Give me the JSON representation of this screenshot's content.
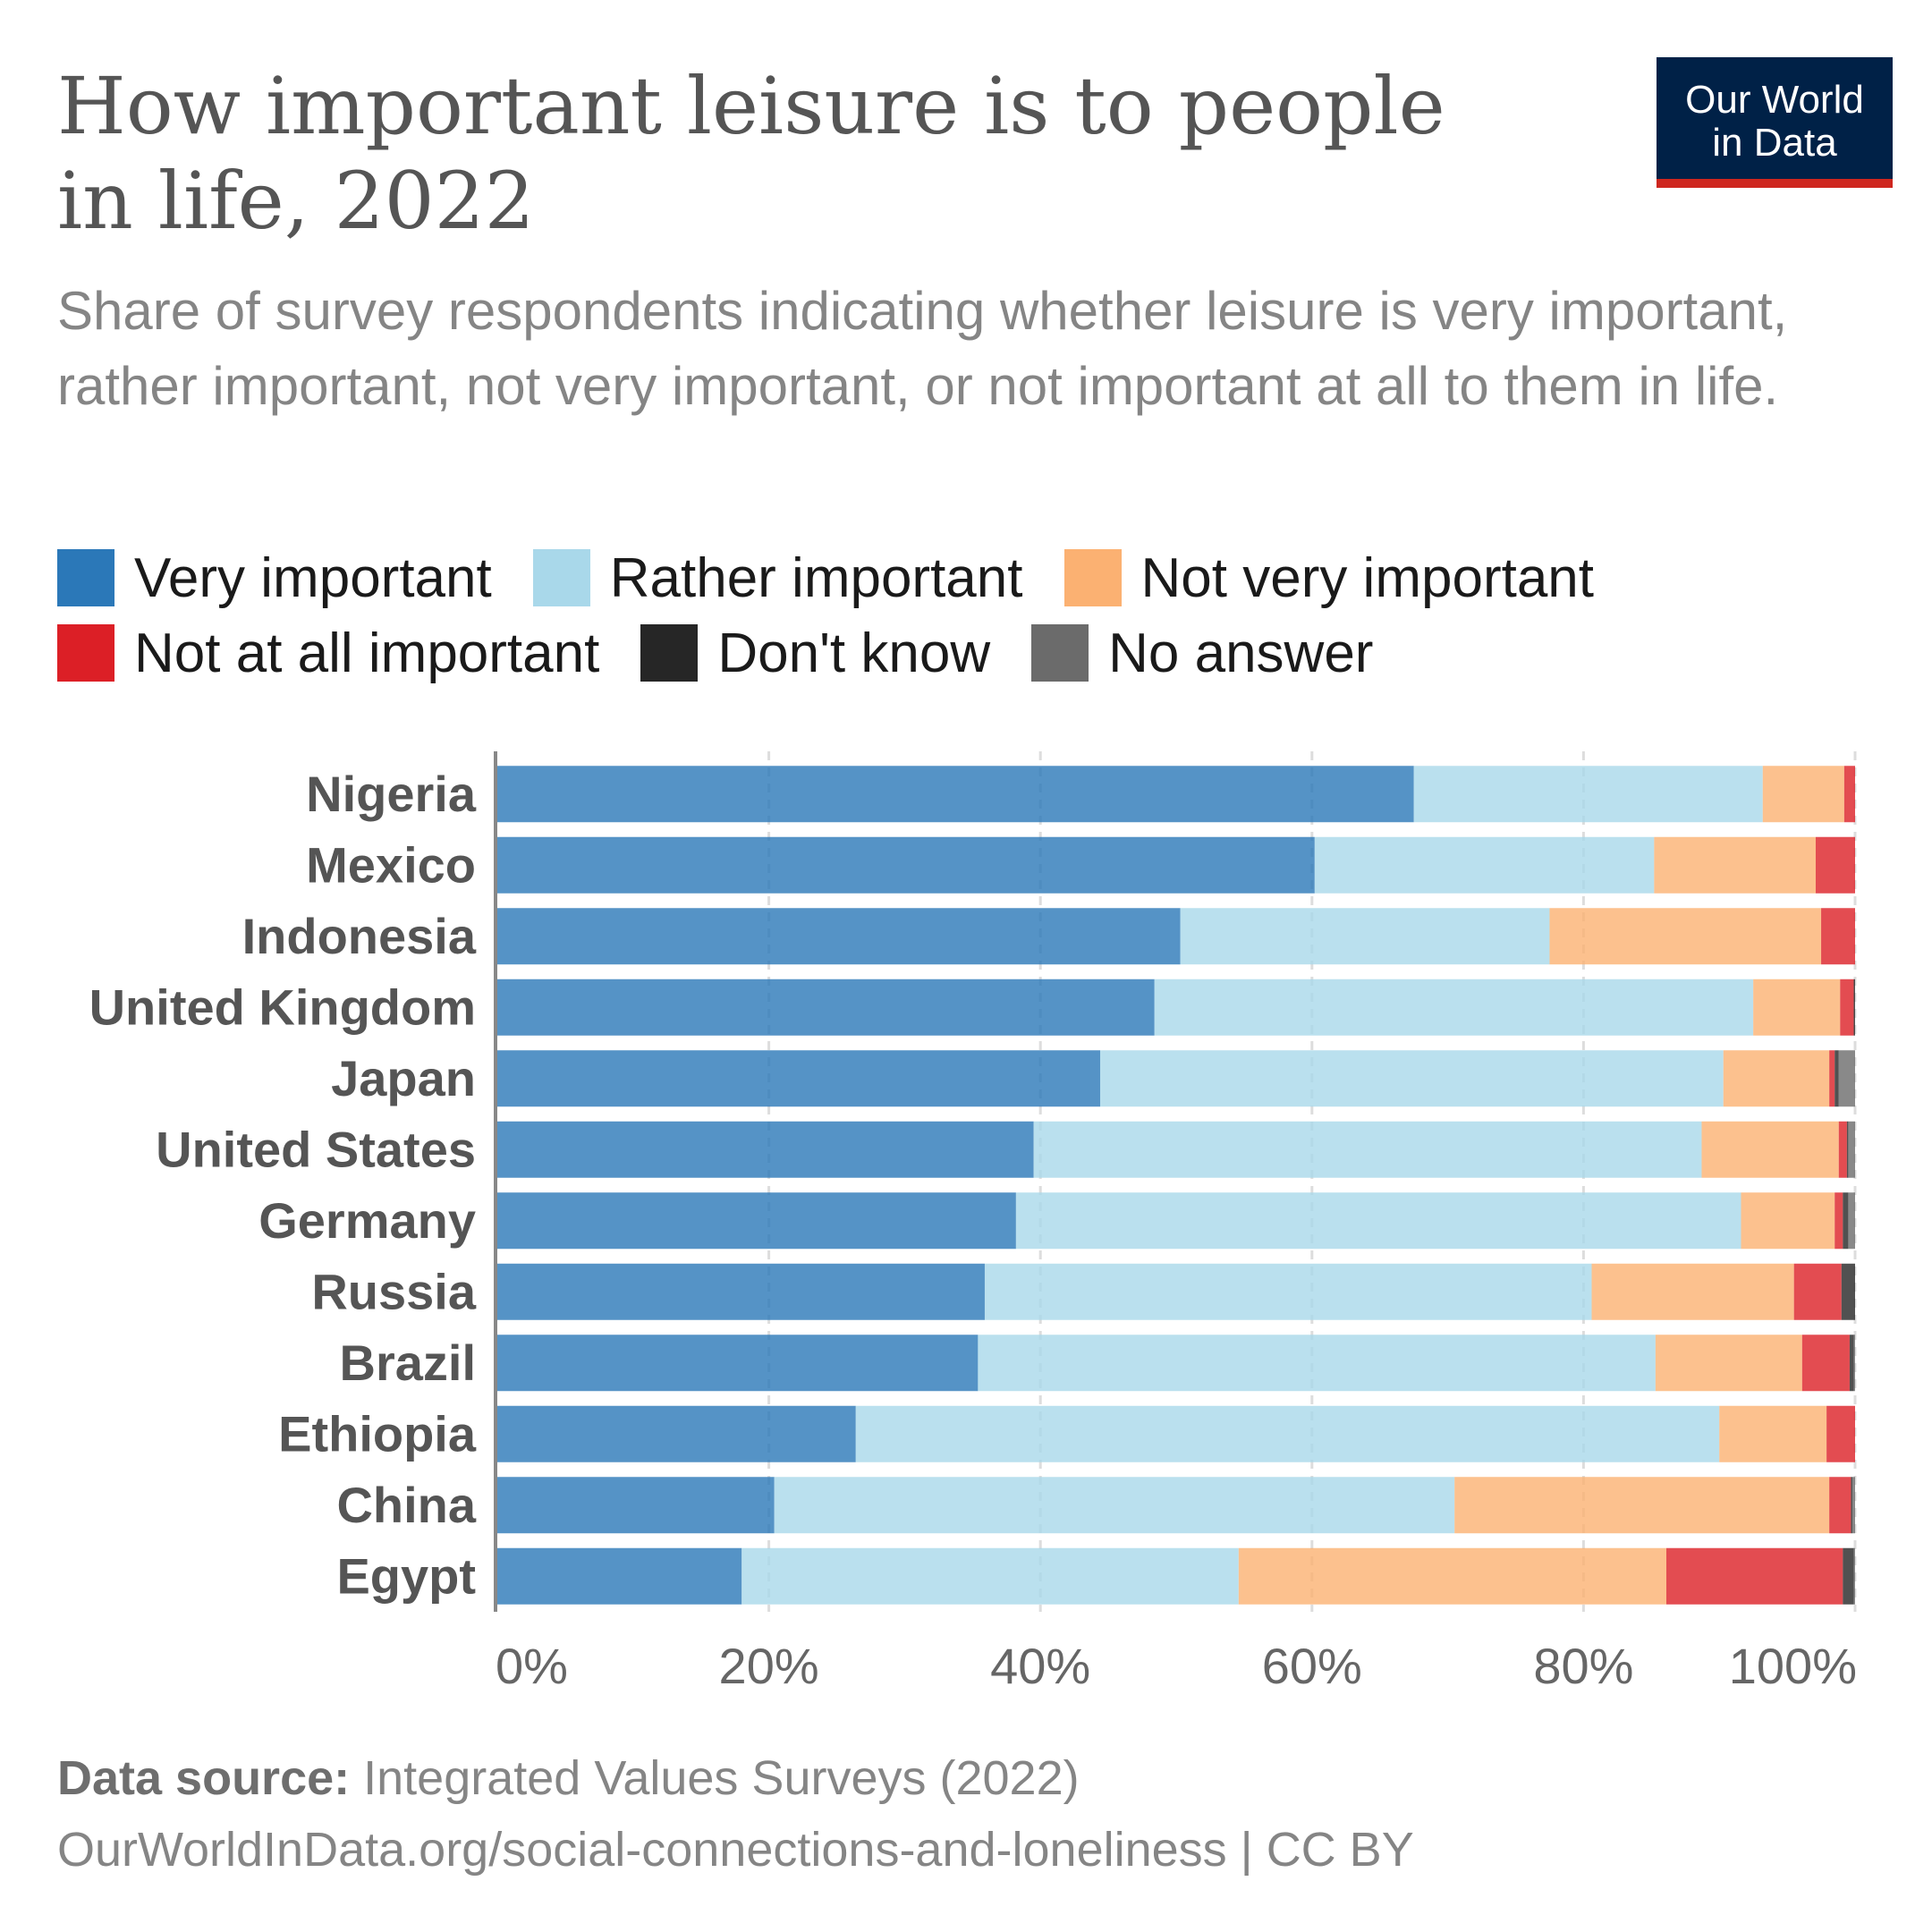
{
  "header": {
    "title": "How important leisure is to people in life, 2022",
    "subtitle": "Share of survey respondents indicating whether leisure is very important, rather important, not very important, or not important at all to them in life.",
    "logo_line1": "Our World",
    "logo_line2": "in Data"
  },
  "legend": [
    {
      "label": "Very important",
      "color": "#2b78b8"
    },
    {
      "label": "Rather important",
      "color": "#a9d8ea"
    },
    {
      "label": "Not very important",
      "color": "#fbb172"
    },
    {
      "label": "Not at all important",
      "color": "#dc1f26"
    },
    {
      "label": "Don't know",
      "color": "#262626"
    },
    {
      "label": "No answer",
      "color": "#6b6b6b"
    }
  ],
  "footer": {
    "source_label": "Data source:",
    "source_text": "Integrated Values Surveys (2022)",
    "url_text": "OurWorldInData.org/social-connections-and-loneliness | CC BY"
  },
  "chart_data": {
    "type": "bar",
    "orientation": "horizontal",
    "stacked": true,
    "categories": [
      "Nigeria",
      "Mexico",
      "Indonesia",
      "United Kingdom",
      "Japan",
      "United States",
      "Germany",
      "Russia",
      "Brazil",
      "Ethiopia",
      "China",
      "Egypt"
    ],
    "series": [
      {
        "name": "Very important",
        "color": "#2b78b8",
        "values": [
          67.5,
          60.2,
          50.3,
          48.4,
          44.4,
          39.5,
          38.2,
          35.9,
          35.4,
          26.4,
          20.4,
          18.0
        ]
      },
      {
        "name": "Rather important",
        "color": "#a9d8ea",
        "values": [
          25.7,
          25.0,
          27.2,
          44.1,
          45.9,
          49.2,
          53.4,
          44.7,
          49.9,
          63.6,
          50.1,
          36.6
        ]
      },
      {
        "name": "Not very important",
        "color": "#fbb172",
        "values": [
          6.0,
          11.9,
          20.0,
          6.4,
          7.8,
          10.1,
          6.9,
          14.9,
          10.8,
          7.9,
          27.6,
          31.5
        ]
      },
      {
        "name": "Not at all important",
        "color": "#dc1f26",
        "values": [
          0.8,
          2.9,
          2.5,
          1.0,
          0.4,
          0.6,
          0.6,
          3.5,
          3.5,
          2.1,
          1.6,
          13.0
        ]
      },
      {
        "name": "Don't know",
        "color": "#262626",
        "values": [
          0,
          0,
          0,
          0.1,
          0.3,
          0.1,
          0.4,
          1.0,
          0.3,
          0,
          0.1,
          0.8
        ]
      },
      {
        "name": "No answer",
        "color": "#6b6b6b",
        "values": [
          0,
          0,
          0,
          0,
          1.2,
          0.5,
          0.5,
          0,
          0.1,
          0,
          0.2,
          0.1
        ]
      }
    ],
    "xlim": [
      0,
      100
    ],
    "x_ticks": [
      "0%",
      "20%",
      "40%",
      "60%",
      "80%",
      "100%"
    ],
    "x_tick_values": [
      0,
      20,
      40,
      60,
      80,
      100
    ],
    "grid": true,
    "legend_position": "top"
  }
}
